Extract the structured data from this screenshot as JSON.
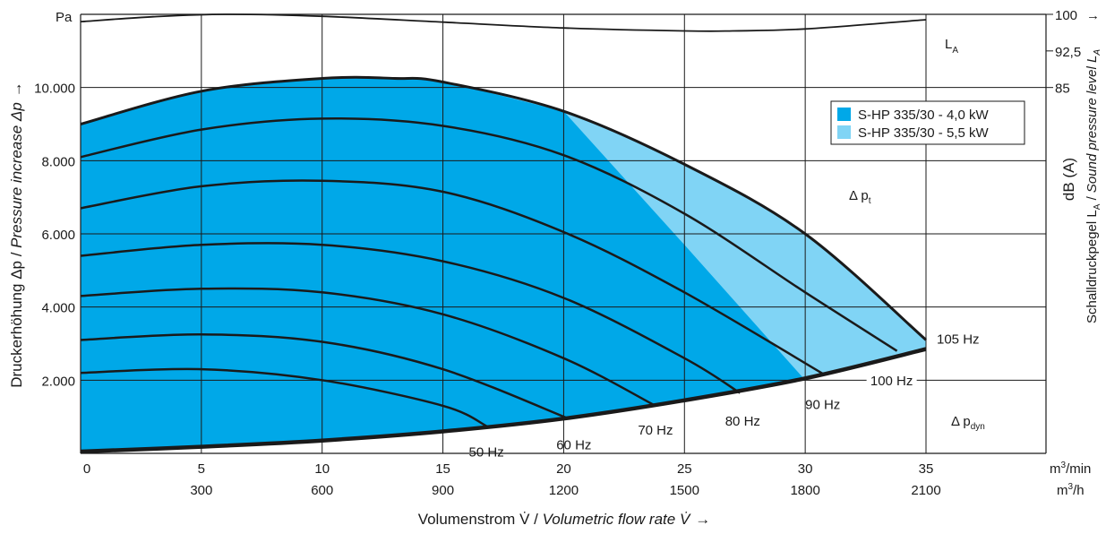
{
  "chart_data": {
    "type": "line",
    "title": "",
    "ylabel_de": "Druckerhöhung Δp / ",
    "ylabel_en": "Pressure increase Δp",
    "y_unit": "Pa",
    "y_arrow": "→",
    "xlabel_de": "Volumenstrom V̇ / ",
    "xlabel_en": "Volumetric flow rate V̇",
    "x_arrow": "→",
    "x_unit_min": "m³/min",
    "x_unit_h": "m³/h",
    "y2label_prefix": "Schalldruckpegel L",
    "y2label_sub": "A",
    "y2label_sep": " / ",
    "y2label_en": "Sound pressure level ",
    "y2label_en_l": "L",
    "y2label_en_sub": "A",
    "y2label_unit": "dB (A)",
    "xlim": [
      0,
      35
    ],
    "ylim": [
      0,
      12000
    ],
    "x_ticks_min": [
      "0",
      "5",
      "10",
      "15",
      "20",
      "25",
      "30",
      "35"
    ],
    "x_ticks_h": [
      "",
      "300",
      "600",
      "900",
      "1200",
      "1500",
      "1800",
      "2100"
    ],
    "y_ticks": [
      {
        "value": 2000,
        "label": "2.000"
      },
      {
        "value": 4000,
        "label": "4.000"
      },
      {
        "value": 6000,
        "label": "6.000"
      },
      {
        "value": 8000,
        "label": "8.000"
      },
      {
        "value": 10000,
        "label": "10.000"
      }
    ],
    "y2_ticks": [
      {
        "value": 100,
        "label": "100"
      },
      {
        "value": 92.5,
        "label": "92,5"
      },
      {
        "value": 85,
        "label": "85"
      }
    ],
    "y2_arrow": "→",
    "y2lim": [
      85,
      100
    ],
    "legend_placement": "top-right",
    "legend": [
      {
        "name": "S-HP 335/30 - 4,0 kW",
        "color": "#00a8e8"
      },
      {
        "name": "S-HP 335/30 - 5,5 kW",
        "color": "#80d4f5"
      }
    ],
    "annotations": {
      "dpt": "Δ p",
      "dpt_sub": "t",
      "dpdyn": "Δ p",
      "dpdyn_sub": "dyn",
      "la": "L",
      "la_sub": "A"
    },
    "system_curve": {
      "name": "",
      "x": [
        0,
        5,
        10,
        15,
        20,
        25,
        30,
        35
      ],
      "y": [
        50,
        180,
        350,
        600,
        950,
        1450,
        2050,
        2850
      ]
    },
    "envelope_top": {
      "x": [
        0,
        5,
        10,
        13,
        15,
        20,
        25,
        30,
        35
      ],
      "y": [
        9000,
        9900,
        10250,
        10250,
        10150,
        9350,
        7900,
        6000,
        3100
      ]
    },
    "boundary_4kw": {
      "x": [
        20,
        25,
        30
      ],
      "y": [
        9350,
        5700,
        2000
      ]
    },
    "series": [
      {
        "name": "50 Hz",
        "x": [
          0,
          5,
          10,
          15,
          16.8
        ],
        "y": [
          2200,
          2300,
          2000,
          1300,
          750
        ]
      },
      {
        "name": "60 Hz",
        "x": [
          0,
          5,
          10,
          15,
          20.2
        ],
        "y": [
          3100,
          3250,
          3050,
          2300,
          950
        ]
      },
      {
        "name": "70 Hz",
        "x": [
          0,
          5,
          10,
          15,
          20,
          23.8
        ],
        "y": [
          4300,
          4500,
          4400,
          3800,
          2600,
          1300
        ]
      },
      {
        "name": "80 Hz",
        "x": [
          0,
          5,
          10,
          15,
          20,
          25,
          27.3
        ],
        "y": [
          5400,
          5700,
          5700,
          5250,
          4250,
          2600,
          1650
        ]
      },
      {
        "name": "90 Hz",
        "x": [
          0,
          5,
          10,
          15,
          20,
          25,
          30.8
        ],
        "y": [
          6700,
          7300,
          7450,
          7150,
          6050,
          4400,
          2150
        ]
      },
      {
        "name": "100 Hz",
        "x": [
          0,
          5,
          10,
          15,
          20,
          25,
          30,
          33.8
        ],
        "y": [
          8100,
          8850,
          9150,
          8950,
          8150,
          6550,
          4400,
          2800
        ]
      },
      {
        "name": "105 Hz",
        "x": [
          0,
          5,
          10,
          13,
          15,
          20,
          25,
          30,
          35
        ],
        "y": [
          9000,
          9900,
          10250,
          10250,
          10150,
          9350,
          7900,
          6000,
          3100
        ]
      }
    ],
    "sound_level": {
      "name": "L_A",
      "x": [
        0,
        3,
        6,
        10,
        15,
        20,
        25,
        27,
        30,
        35
      ],
      "y": [
        98.5,
        99.5,
        100,
        99.6,
        98.4,
        97.2,
        96.6,
        96.6,
        97.0,
        98.9
      ]
    },
    "curve_labels": [
      "50 Hz",
      "60 Hz",
      "70 Hz",
      "80 Hz",
      "90 Hz",
      "100 Hz",
      "105 Hz"
    ]
  }
}
